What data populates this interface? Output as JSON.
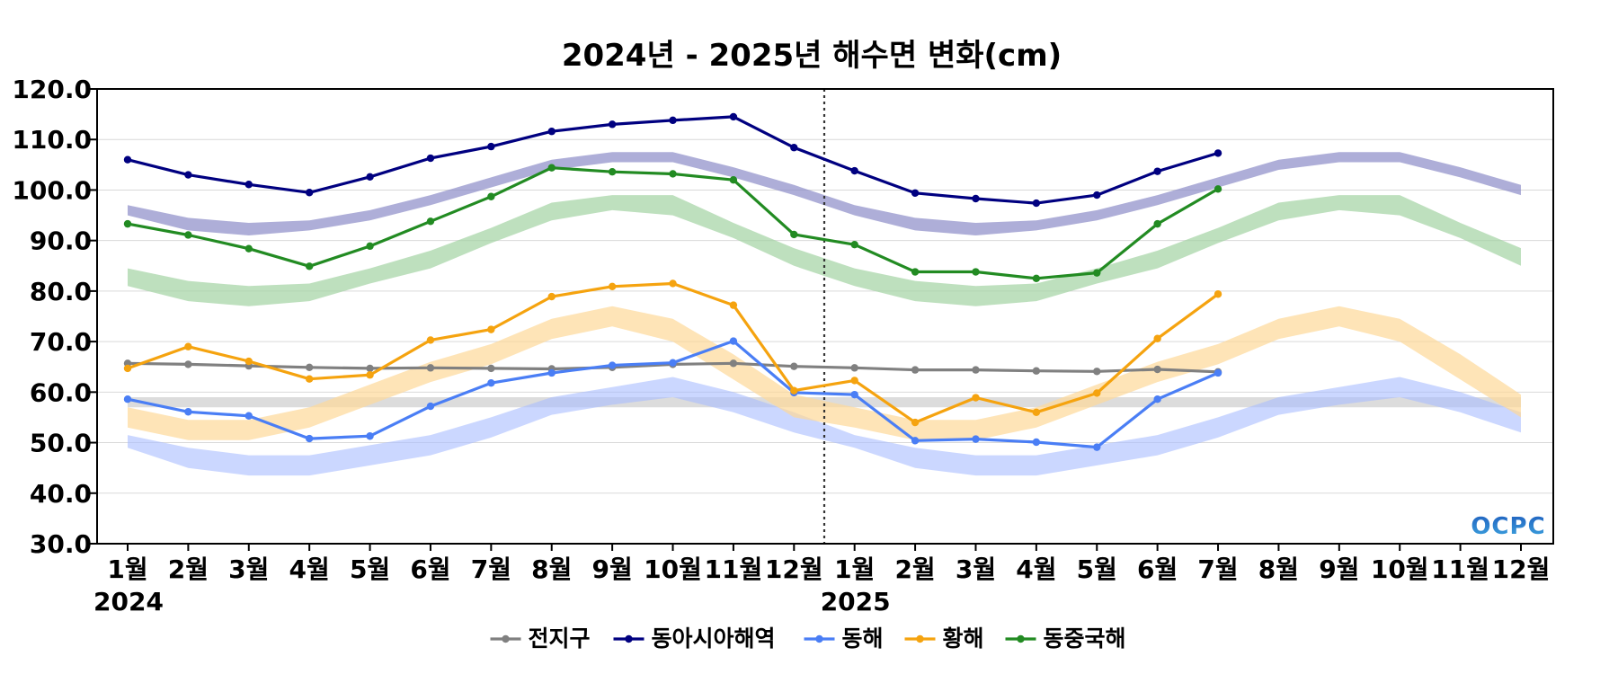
{
  "chart_data": {
    "type": "line",
    "title": "2024년 - 2025년 해수면 변화(cm)",
    "ylim": [
      30,
      120
    ],
    "yticks": [
      "30.0",
      "40.0",
      "50.0",
      "60.0",
      "70.0",
      "80.0",
      "90.0",
      "100.0",
      "110.0",
      "120.0"
    ],
    "x_labels": [
      "1월",
      "2월",
      "3월",
      "4월",
      "5월",
      "6월",
      "7월",
      "8월",
      "9월",
      "10월",
      "11월",
      "12월",
      "1월",
      "2월",
      "3월",
      "4월",
      "5월",
      "6월",
      "7월",
      "8월",
      "9월",
      "10월",
      "11월",
      "12월"
    ],
    "year_labels": [
      {
        "label": "2024",
        "index": 0
      },
      {
        "label": "2025",
        "index": 12
      }
    ],
    "divider_index": 11.5,
    "grid": true,
    "legend_position": "bottom",
    "series": [
      {
        "name": "전지구",
        "color": "#808080",
        "values": [
          65.7,
          65.5,
          65.2,
          64.9,
          64.7,
          64.8,
          64.7,
          64.6,
          64.9,
          65.5,
          65.7,
          65.1,
          64.8,
          64.4,
          64.4,
          64.2,
          64.1,
          64.5,
          64.0
        ]
      },
      {
        "name": "동아시아해역",
        "color": "#000080",
        "values": [
          106.0,
          103.0,
          101.1,
          99.5,
          102.6,
          106.3,
          108.6,
          111.6,
          113.0,
          113.8,
          114.5,
          108.4,
          103.8,
          99.4,
          98.3,
          97.4,
          99.0,
          103.7,
          107.3
        ]
      },
      {
        "name": "동해",
        "color": "#4a7ef5",
        "values": [
          58.6,
          56.1,
          55.3,
          50.8,
          51.3,
          57.2,
          61.8,
          63.8,
          65.3,
          65.8,
          70.1,
          59.9,
          59.5,
          50.4,
          50.7,
          50.1,
          49.1,
          58.6,
          63.8
        ]
      },
      {
        "name": "황해",
        "color": "#f5a30f",
        "values": [
          64.7,
          69.0,
          66.1,
          62.6,
          63.4,
          70.3,
          72.4,
          78.9,
          80.9,
          81.5,
          77.2,
          60.3,
          62.3,
          54.0,
          58.9,
          56.0,
          59.8,
          70.6,
          79.4
        ]
      },
      {
        "name": "동중국해",
        "color": "#228b22",
        "values": [
          93.3,
          91.1,
          88.4,
          84.9,
          88.9,
          93.8,
          98.7,
          104.4,
          103.6,
          103.2,
          102.0,
          91.2,
          89.2,
          83.8,
          83.8,
          82.5,
          83.6,
          93.3,
          100.2
        ]
      }
    ],
    "climatology_bands": [
      {
        "series": "전지구",
        "color": "#d3d3d3",
        "opacity": 0.8,
        "upper": [
          59,
          59,
          59,
          59,
          59,
          59,
          59,
          59,
          59,
          59,
          59,
          59
        ],
        "lower": [
          57,
          57,
          57,
          57,
          57,
          57,
          57,
          57,
          57,
          57,
          57,
          57
        ]
      },
      {
        "series": "동아시아해역",
        "color": "#8c8cc8",
        "opacity": 0.7,
        "upper": [
          97,
          94.5,
          93.5,
          94,
          96,
          99,
          102.5,
          106,
          107.5,
          107.5,
          104.5,
          101
        ],
        "lower": [
          95,
          92,
          91,
          92,
          94,
          97,
          100.5,
          104,
          105.5,
          105.5,
          102.5,
          99
        ]
      },
      {
        "series": "동해",
        "color": "#a8bcff",
        "opacity": 0.6,
        "upper": [
          51.5,
          49,
          47.5,
          47.5,
          49.5,
          51.5,
          55,
          59,
          61,
          63,
          60,
          56
        ],
        "lower": [
          49,
          45,
          43.5,
          43.5,
          45.5,
          47.5,
          51,
          55.5,
          57.5,
          59,
          56,
          52
        ]
      },
      {
        "series": "황해",
        "color": "#fdd999",
        "opacity": 0.7,
        "upper": [
          57,
          54.5,
          54.5,
          57,
          61.5,
          66,
          69.5,
          74.5,
          77,
          74.5,
          67.5,
          59.5
        ],
        "lower": [
          53,
          50.5,
          50.5,
          53,
          57.5,
          62,
          65.5,
          70.5,
          73,
          70,
          62.5,
          55
        ]
      },
      {
        "series": "동중국해",
        "color": "#a3d3a3",
        "opacity": 0.7,
        "upper": [
          84.5,
          82,
          81,
          81.5,
          84.5,
          88,
          92.5,
          97.5,
          99,
          99,
          93.5,
          88.5
        ],
        "lower": [
          81,
          78,
          77,
          78,
          81.5,
          84.5,
          89.5,
          94,
          96,
          95,
          90.5,
          85
        ]
      }
    ]
  },
  "logo_text": "OCPC",
  "logo_colors": [
    "#1f5fbf",
    "#3fa8e0"
  ]
}
